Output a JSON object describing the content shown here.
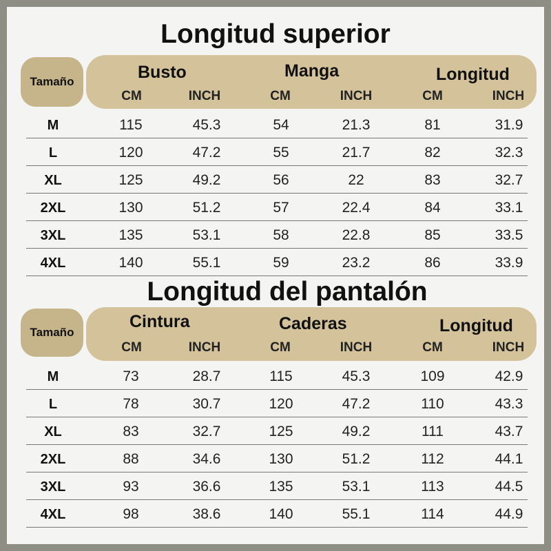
{
  "tables": [
    {
      "title": "Longitud superior",
      "size_label": "Tamaño",
      "groups": [
        "Busto",
        "Manga",
        "Longitud"
      ],
      "units": [
        "CM",
        "INCH",
        "CM",
        "INCH",
        "CM",
        "INCH"
      ],
      "rows": [
        {
          "size": "M",
          "values": [
            "115",
            "45.3",
            "54",
            "21.3",
            "81",
            "31.9"
          ]
        },
        {
          "size": "L",
          "values": [
            "120",
            "47.2",
            "55",
            "21.7",
            "82",
            "32.3"
          ]
        },
        {
          "size": "XL",
          "values": [
            "125",
            "49.2",
            "56",
            "22",
            "83",
            "32.7"
          ]
        },
        {
          "size": "2XL",
          "values": [
            "130",
            "51.2",
            "57",
            "22.4",
            "84",
            "33.1"
          ]
        },
        {
          "size": "3XL",
          "values": [
            "135",
            "53.1",
            "58",
            "22.8",
            "85",
            "33.5"
          ]
        },
        {
          "size": "4XL",
          "values": [
            "140",
            "55.1",
            "59",
            "23.2",
            "86",
            "33.9"
          ]
        }
      ]
    },
    {
      "title": "Longitud del pantalón",
      "size_label": "Tamaño",
      "groups": [
        "Cintura",
        "Caderas",
        "Longitud"
      ],
      "units": [
        "CM",
        "INCH",
        "CM",
        "INCH",
        "CM",
        "INCH"
      ],
      "rows": [
        {
          "size": "M",
          "values": [
            "73",
            "28.7",
            "115",
            "45.3",
            "109",
            "42.9"
          ]
        },
        {
          "size": "L",
          "values": [
            "78",
            "30.7",
            "120",
            "47.2",
            "110",
            "43.3"
          ]
        },
        {
          "size": "XL",
          "values": [
            "83",
            "32.7",
            "125",
            "49.2",
            "111",
            "43.7"
          ]
        },
        {
          "size": "2XL",
          "values": [
            "88",
            "34.6",
            "130",
            "51.2",
            "112",
            "44.1"
          ]
        },
        {
          "size": "3XL",
          "values": [
            "93",
            "36.6",
            "135",
            "53.1",
            "113",
            "44.5"
          ]
        },
        {
          "size": "4XL",
          "values": [
            "98",
            "38.6",
            "140",
            "55.1",
            "114",
            "44.9"
          ]
        }
      ]
    }
  ],
  "colors": {
    "frame": "#8f8e84",
    "card": "#f4f4f2",
    "size_pill": "#c6b48a",
    "header_pill": "#d4c39a"
  }
}
